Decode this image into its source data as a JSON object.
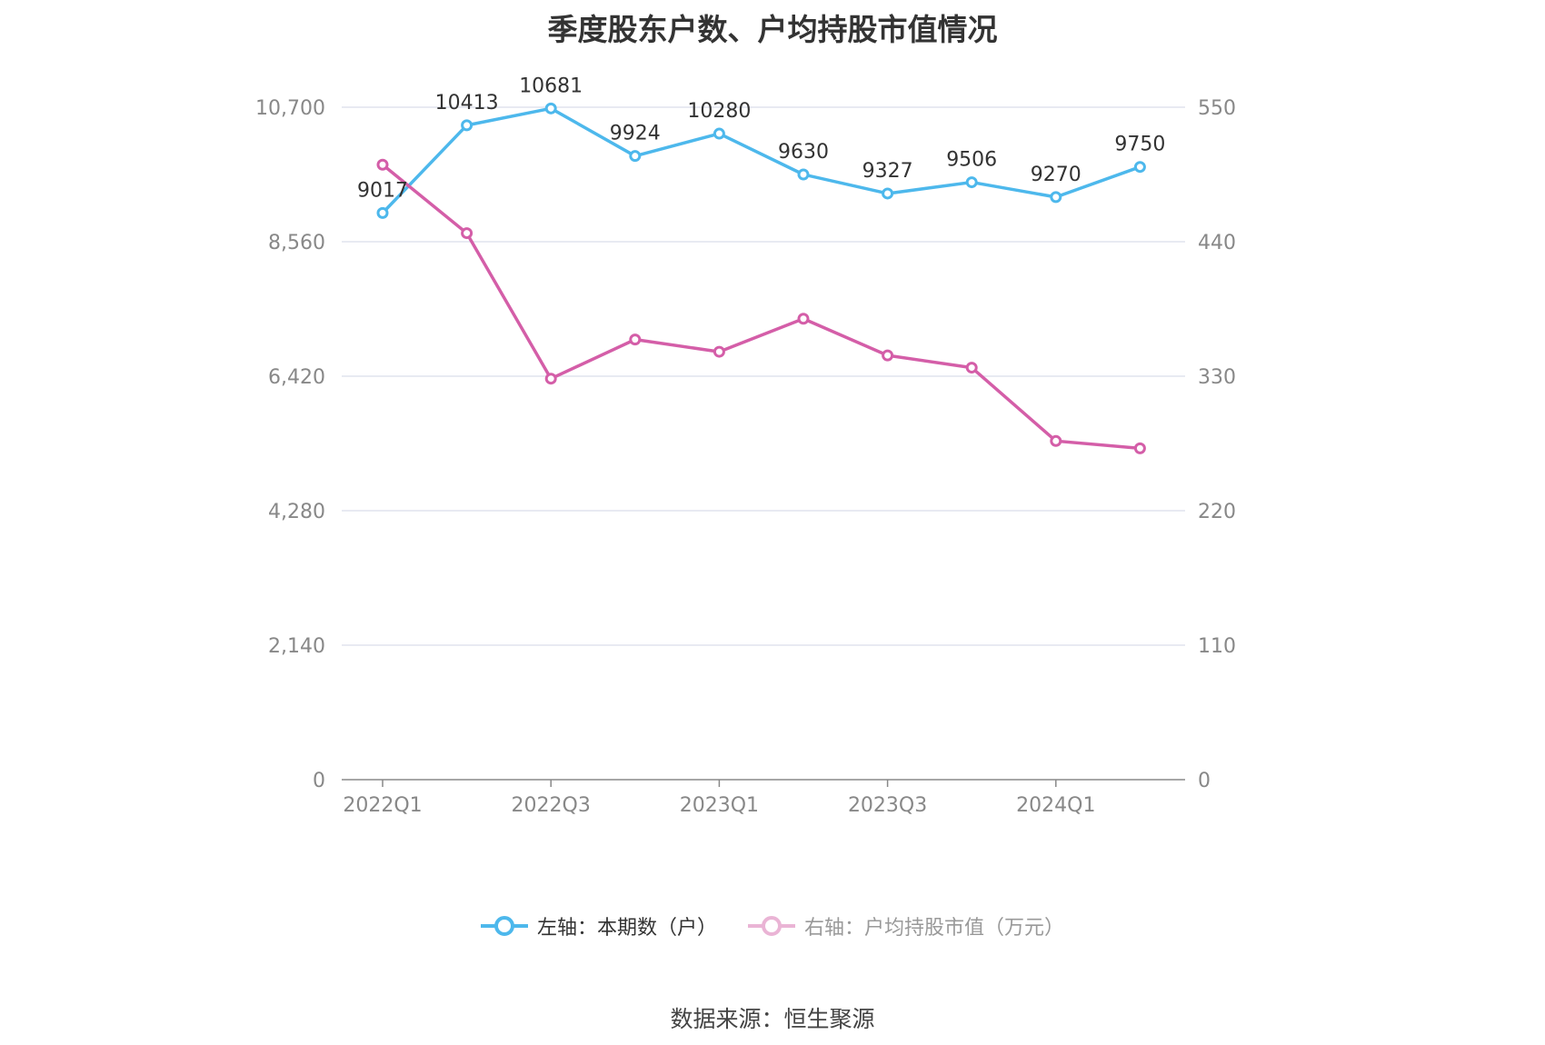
{
  "title": "季度股东户数、户均持股市值情况",
  "source": "数据来源：恒生聚源",
  "colors": {
    "left_series": "#4db8ec",
    "right_series": "#d45ea8",
    "grid": "#e0e4ee",
    "axis": "#888888"
  },
  "chart_data": {
    "type": "line",
    "title": "季度股东户数、户均持股市值情况",
    "x": [
      "2022Q1",
      "2022Q2",
      "2022Q3",
      "2022Q4",
      "2023Q1",
      "2023Q2",
      "2023Q3",
      "2023Q4",
      "2024Q1",
      "2024Q2"
    ],
    "x_tick_labels": [
      "2022Q1",
      "2022Q3",
      "2023Q1",
      "2023Q3",
      "2024Q1"
    ],
    "left_axis": {
      "ticks": [
        "0",
        "2,140",
        "4,280",
        "6,420",
        "8,560",
        "10,700"
      ],
      "ylim": [
        0,
        10700
      ]
    },
    "right_axis": {
      "ticks": [
        "0",
        "110",
        "220",
        "330",
        "440",
        "550"
      ],
      "ylim": [
        0,
        550
      ]
    },
    "series": [
      {
        "name": "左轴：本期数（户）",
        "axis": "left",
        "values": [
          9017,
          10413,
          10681,
          9924,
          10280,
          9630,
          9327,
          9506,
          9270,
          9750
        ],
        "data_labels": [
          "9017",
          "10413",
          "10681",
          "9924",
          "10280",
          "9630",
          "9327",
          "9506",
          "9270",
          "9750"
        ]
      },
      {
        "name": "右轴：户均持股市值（万元）",
        "axis": "right",
        "values": [
          503,
          447,
          328,
          360,
          350,
          377,
          347,
          337,
          277,
          271
        ]
      }
    ],
    "grid": true,
    "legend_position": "bottom"
  }
}
